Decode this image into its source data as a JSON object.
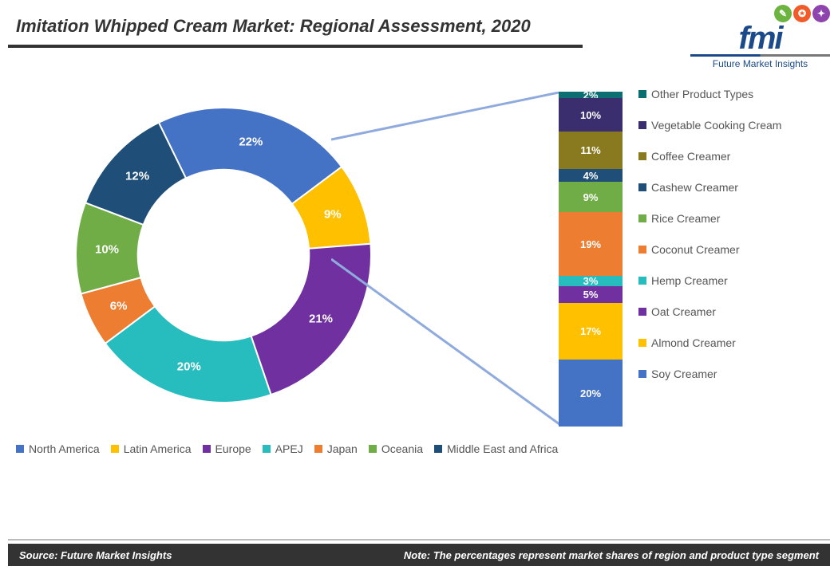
{
  "title": {
    "text": "Imitation Whipped Cream Market: Regional Assessment, 2020",
    "fontsize": 22,
    "color": "#333333"
  },
  "logo": {
    "icons": [
      {
        "bg": "#6cb33f",
        "glyph": "✎"
      },
      {
        "bg": "#f15a29",
        "glyph": "✪"
      },
      {
        "bg": "#8e44ad",
        "glyph": "✦"
      }
    ],
    "main": "fmi",
    "sub": "Future Market Insights"
  },
  "donut": {
    "type": "donut",
    "inner_radius_pct": 58,
    "background_color": "#ffffff",
    "slices": [
      {
        "label": "North America",
        "value": 22,
        "color": "#4472c4"
      },
      {
        "label": "Latin America",
        "value": 9,
        "color": "#ffc000"
      },
      {
        "label": "Europe",
        "value": 21,
        "color": "#7030a0"
      },
      {
        "label": "APEJ",
        "value": 20,
        "color": "#27bdbe"
      },
      {
        "label": "Japan",
        "value": 6,
        "color": "#ed7d31"
      },
      {
        "label": "Oceania",
        "value": 10,
        "color": "#70ad47"
      },
      {
        "label": "Middle East and Africa",
        "value": 12,
        "color": "#1f4e79"
      }
    ],
    "start_angle_deg": 244,
    "label_fontsize": 15,
    "label_color": "#ffffff"
  },
  "stacked_bar": {
    "type": "stacked-bar-100",
    "segments": [
      {
        "label": "Soy Creamer",
        "value": 20,
        "color": "#4472c4"
      },
      {
        "label": "Almond Creamer",
        "value": 17,
        "color": "#ffc000"
      },
      {
        "label": "Oat Creamer",
        "value": 5,
        "color": "#7030a0"
      },
      {
        "label": "Hemp Creamer",
        "value": 3,
        "color": "#27bdbe"
      },
      {
        "label": "Coconut Creamer",
        "value": 19,
        "color": "#ed7d31"
      },
      {
        "label": "Rice Creamer",
        "value": 9,
        "color": "#70ad47"
      },
      {
        "label": "Cashew Creamer",
        "value": 4,
        "color": "#1f4e79"
      },
      {
        "label": "Coffee Creamer",
        "value": 11,
        "color": "#8a7a1f"
      },
      {
        "label": "Vegetable Cooking Cream",
        "value": 10,
        "color": "#3b2e6e"
      },
      {
        "label": "Other Product Types",
        "value": 2,
        "color": "#0d6e72"
      }
    ],
    "label_fontsize": 13,
    "label_color": "#ffffff"
  },
  "callout": {
    "line_color": "#8faadc",
    "line_width": 3
  },
  "footer": {
    "source": "Source: Future Market Insights",
    "note": "Note: The percentages represent market shares of region and product type segment",
    "bg": "#333333",
    "fg": "#ffffff"
  }
}
